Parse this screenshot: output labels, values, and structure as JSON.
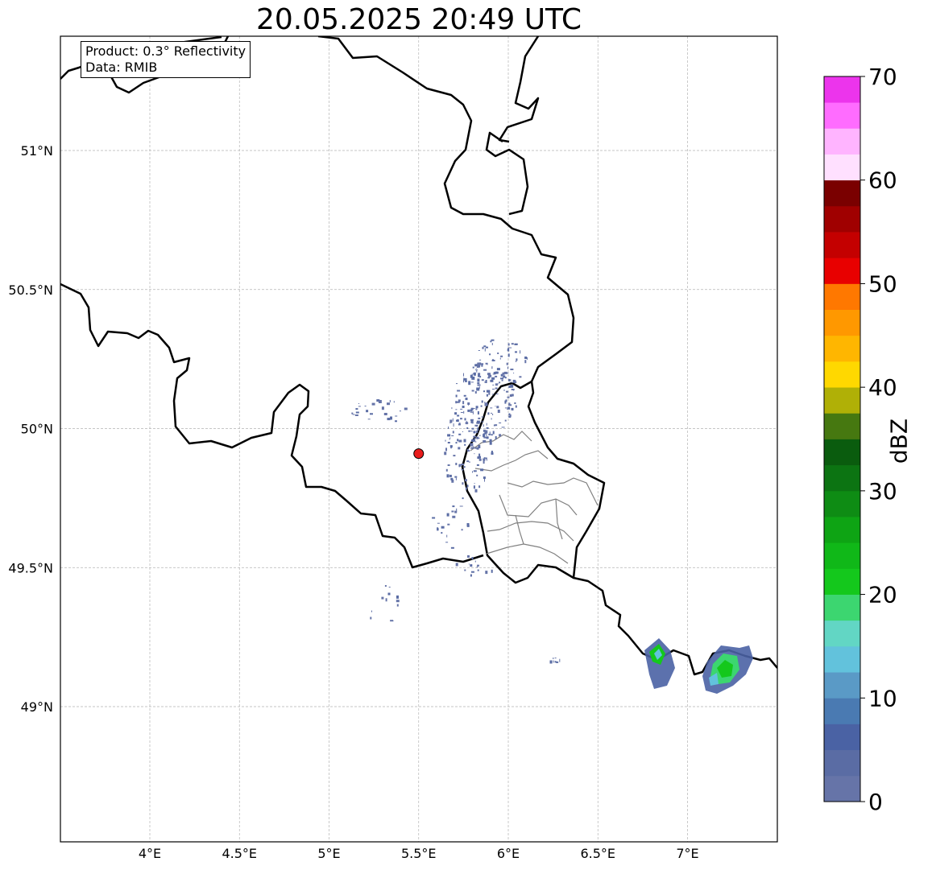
{
  "title": "20.05.2025 20:49 UTC",
  "info": {
    "product": "Product: 0.3° Reflectivity",
    "data": "Data: RMIB"
  },
  "map": {
    "lon_range": [
      3.5,
      7.5
    ],
    "lat_range": [
      48.55,
      51.45
    ],
    "lon_ticks": [
      {
        "value": 4.0,
        "label": "4°E"
      },
      {
        "value": 4.5,
        "label": "4.5°E"
      },
      {
        "value": 5.0,
        "label": "5°E"
      },
      {
        "value": 5.5,
        "label": "5.5°E"
      },
      {
        "value": 6.0,
        "label": "6°E"
      },
      {
        "value": 6.5,
        "label": "6.5°E"
      },
      {
        "value": 7.0,
        "label": "7°E"
      }
    ],
    "lat_ticks": [
      {
        "value": 51.0,
        "label": "51°N"
      },
      {
        "value": 50.5,
        "label": "50.5°N"
      },
      {
        "value": 50.0,
        "label": "50°N"
      },
      {
        "value": 49.5,
        "label": "49.5°N"
      },
      {
        "value": 49.0,
        "label": "49°N"
      }
    ],
    "grid": true,
    "radar_site": {
      "lon": 5.5,
      "lat": 49.91,
      "color": "#e81c1c"
    },
    "echo_clusters": [
      {
        "lon": 6.82,
        "lat": 49.15,
        "max_dbz": 24
      },
      {
        "lon": 7.23,
        "lat": 49.14,
        "max_dbz": 24
      },
      {
        "lon": 5.82,
        "lat": 50.1,
        "max_dbz": 5
      },
      {
        "lon": 5.65,
        "lat": 49.92,
        "max_dbz": 3
      },
      {
        "lon": 6.25,
        "lat": 49.17,
        "max_dbz": 4
      },
      {
        "lon": 5.3,
        "lat": 49.38,
        "max_dbz": 3
      }
    ]
  },
  "colorbar": {
    "label": "dBZ",
    "min": 0,
    "max": 70,
    "step": 2.5,
    "ticks": [
      0,
      10,
      20,
      30,
      40,
      50,
      60,
      70
    ],
    "colors": [
      "#6674a8",
      "#5a6ca4",
      "#4a62a4",
      "#4a7ab2",
      "#5a9ac6",
      "#62c2dc",
      "#62d6c4",
      "#3cd670",
      "#14c81c",
      "#10b818",
      "#0ea414",
      "#0e8c14",
      "#0c7412",
      "#0a5c0e",
      "#467810",
      "#b0b006",
      "#ffd800",
      "#ffb600",
      "#ff9800",
      "#ff7800",
      "#e80000",
      "#c40000",
      "#a00000",
      "#7a0000",
      "#ffe0ff",
      "#ffb4ff",
      "#ff6cff",
      "#ec34ec"
    ]
  }
}
